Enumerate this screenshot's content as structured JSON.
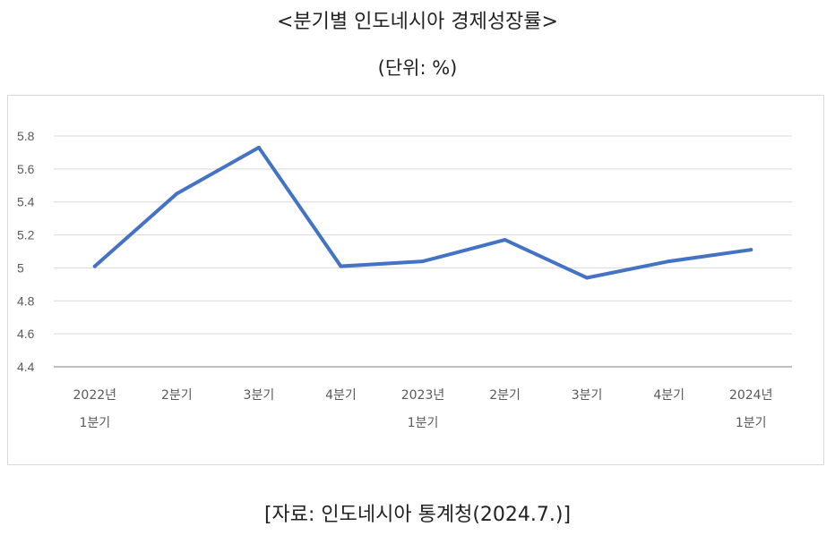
{
  "title": "<분기별 인도네시아 경제성장률>",
  "unit_label": "(단위: %)",
  "source": "[자료: 인도네시아 통계청(2024.7.)]",
  "chart_data": {
    "type": "line",
    "title": "<분기별 인도네시아 경제성장률>",
    "xlabel": "",
    "ylabel": "",
    "categories": [
      [
        "2022년",
        "1분기"
      ],
      [
        "2분기"
      ],
      [
        "3분기"
      ],
      [
        "4분기"
      ],
      [
        "2023년",
        "1분기"
      ],
      [
        "2분기"
      ],
      [
        "3분기"
      ],
      [
        "4분기"
      ],
      [
        "2024년",
        "1분기"
      ]
    ],
    "series": [
      {
        "name": "",
        "values": [
          5.01,
          5.45,
          5.73,
          5.01,
          5.04,
          5.17,
          4.94,
          5.04,
          5.11
        ]
      }
    ],
    "ylim": [
      4.4,
      5.8
    ],
    "yticks": [
      "4.4",
      "4.6",
      "4.8",
      "5",
      "5.2",
      "5.4",
      "5.6",
      "5.8"
    ],
    "grid": true,
    "line_color": "#4472c4",
    "grid_color": "#d9d9d9",
    "axis_color": "#bfbfbf"
  }
}
